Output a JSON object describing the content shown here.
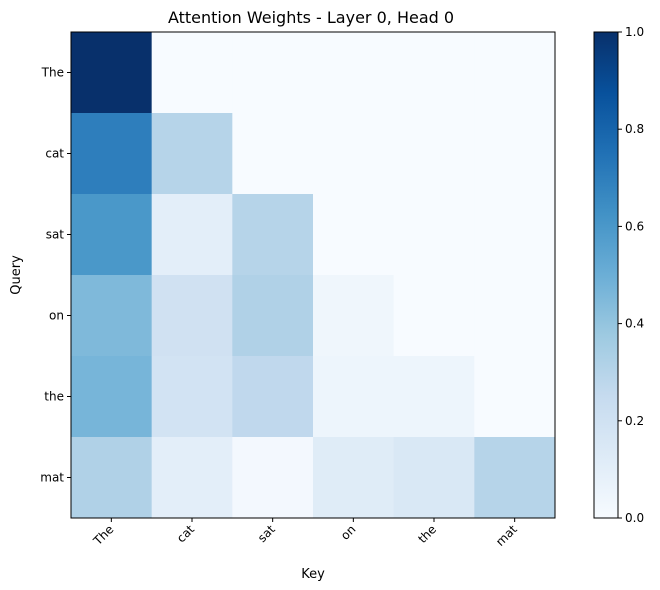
{
  "chart_data": {
    "type": "heatmap",
    "title": "Attention Weights - Layer 0, Head 0",
    "xlabel": "Key",
    "ylabel": "Query",
    "x_tokens": [
      "The",
      "cat",
      "sat",
      "on",
      "the",
      "mat"
    ],
    "y_tokens": [
      "The",
      "cat",
      "sat",
      "on",
      "the",
      "mat"
    ],
    "values": [
      [
        1.0,
        0.0,
        0.0,
        0.0,
        0.0,
        0.0
      ],
      [
        0.7,
        0.3,
        0.0,
        0.0,
        0.0,
        0.0
      ],
      [
        0.6,
        0.1,
        0.3,
        0.0,
        0.0,
        0.0
      ],
      [
        0.45,
        0.2,
        0.32,
        0.04,
        0.0,
        0.0
      ],
      [
        0.47,
        0.19,
        0.27,
        0.05,
        0.05,
        0.0
      ],
      [
        0.32,
        0.1,
        0.02,
        0.12,
        0.15,
        0.3
      ]
    ],
    "colormap": "Blues",
    "vmin": 0,
    "vmax": 1,
    "colorbar_ticks": [
      "0.0",
      "0.2",
      "0.4",
      "0.6",
      "0.8",
      "1.0"
    ],
    "colorbar_tick_values": [
      0,
      0.2,
      0.4,
      0.6,
      0.8,
      1.0
    ]
  }
}
